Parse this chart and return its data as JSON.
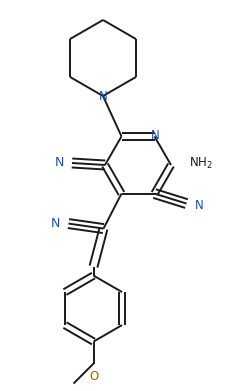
{
  "bg_color": "#ffffff",
  "line_color": "#1a1a1a",
  "N_color": "#1a4fa0",
  "O_color": "#8b6914",
  "lw": 1.4,
  "figsize": [
    2.46,
    3.91
  ],
  "dpi": 100,
  "xlim": [
    0,
    246
  ],
  "ylim": [
    0,
    391
  ]
}
